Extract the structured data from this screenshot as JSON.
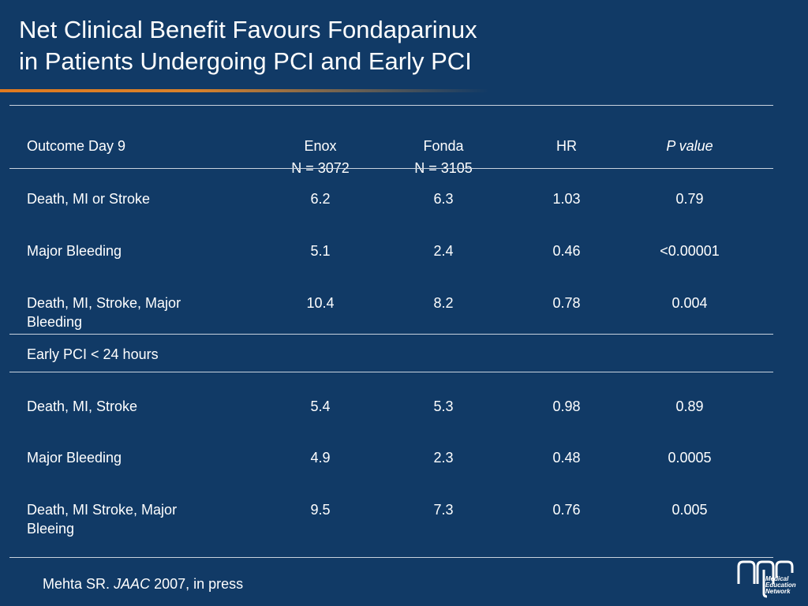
{
  "slide": {
    "title_line1": "Net Clinical Benefit Favours Fondaparinux",
    "title_line2": "in Patients Undergoing PCI and Early PCI"
  },
  "table": {
    "headers": {
      "outcome": "Outcome Day 9",
      "enox": "Enox",
      "enox_n": "N = 3072",
      "fonda": "Fonda",
      "fonda_n": "N = 3105",
      "hr": "HR",
      "p": "P value"
    },
    "rows": [
      {
        "outcome": "Death, MI or Stroke",
        "enox": "6.2",
        "fonda": "6.3",
        "hr": "1.03",
        "p": "0.79"
      },
      {
        "outcome": "Major Bleeding",
        "enox": "5.1",
        "fonda": "2.4",
        "hr": "0.46",
        "p": "<0.00001"
      },
      {
        "outcome": "Death, MI, Stroke, Major Bleeding",
        "enox": "10.4",
        "fonda": "8.2",
        "hr": "0.78",
        "p": "0.004"
      }
    ],
    "section_label": "Early PCI < 24 hours",
    "section_rows": [
      {
        "outcome": "Death, MI, Stroke",
        "enox": "5.4",
        "fonda": "5.3",
        "hr": "0.98",
        "p": "0.89"
      },
      {
        "outcome": "Major Bleeding",
        "enox": "4.9",
        "fonda": "2.3",
        "hr": "0.48",
        "p": "0.0005"
      },
      {
        "outcome": "Death, MI Stroke, Major Bleeing",
        "enox": "9.5",
        "fonda": "7.3",
        "hr": "0.76",
        "p": "0.005"
      }
    ]
  },
  "footnote": {
    "author": "Mehta SR.",
    "journal": "JAAC",
    "rest": "2007, in press"
  },
  "logo": {
    "line1": "Medical",
    "line2": "Education",
    "line3": "Network"
  },
  "colors": {
    "background": "#113a66",
    "accent": "#e07a1f",
    "text": "#ffffff"
  }
}
